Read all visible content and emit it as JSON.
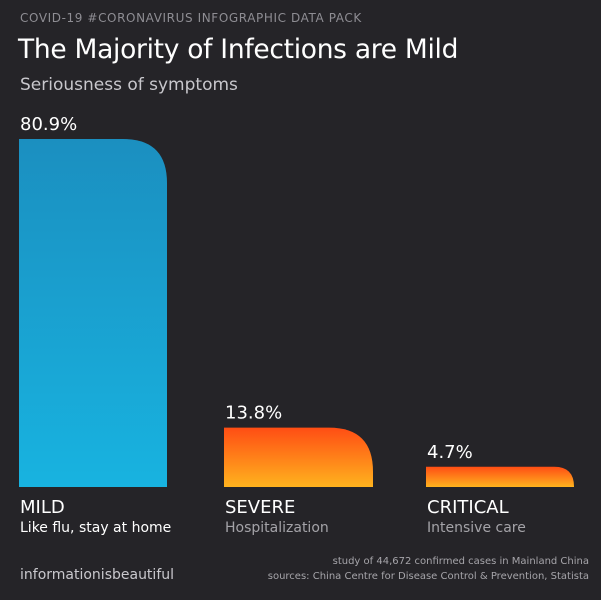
{
  "header": {
    "kicker": "COVID-19 #CORONAVIRUS INFOGRAPHIC DATA PACK",
    "title": "The Majority of Infections are Mild",
    "subtitle": "Seriousness of symptoms"
  },
  "chart_data": {
    "type": "bar",
    "categories": [
      "MILD",
      "SEVERE",
      "CRITICAL"
    ],
    "descriptions": [
      "Like flu, stay at home",
      "Hospitalization",
      "Intensive care"
    ],
    "values": [
      80.9,
      13.8,
      4.7
    ],
    "value_labels": [
      "80.9%",
      "13.8%",
      "4.7%"
    ],
    "title": "The Majority of Infections are Mild",
    "subtitle": "Seriousness of symptoms",
    "ylim": [
      0,
      80.9
    ],
    "grid": false,
    "legend": "none",
    "colors": {
      "mild": [
        "#1b8fc0",
        "#18b3e0"
      ],
      "other": [
        "#ff4d14",
        "#ffb31e"
      ],
      "mild_desc": "#ffffff",
      "other_desc": "#a4a3a8"
    }
  },
  "footer": {
    "brand": "informationisbeautiful",
    "source_line1": "study of 44,672 confirmed cases in Mainland China",
    "source_line2": "sources: China Centre for Disease Control & Prevention, Statista"
  }
}
